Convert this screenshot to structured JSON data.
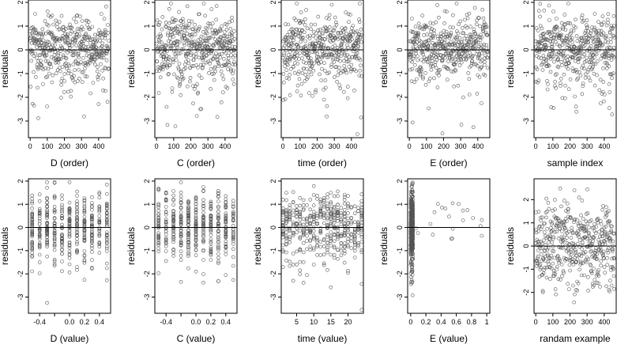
{
  "chart_data": [
    {
      "type": "scatter",
      "xlabel": "D (order)",
      "ylabel": "residuals",
      "xlim": [
        -10,
        470
      ],
      "ylim": [
        -3.7,
        2.1
      ],
      "xticks": [
        0,
        100,
        200,
        300,
        400
      ],
      "yticks": [
        -3,
        -2,
        -1,
        0,
        1,
        2
      ],
      "zero_line": 0,
      "n": 460,
      "pattern": "order"
    },
    {
      "type": "scatter",
      "xlabel": "C (order)",
      "ylabel": "residuals",
      "xlim": [
        -10,
        470
      ],
      "ylim": [
        -3.7,
        2.1
      ],
      "xticks": [
        0,
        100,
        200,
        300,
        400
      ],
      "yticks": [
        -3,
        -2,
        -1,
        0,
        1,
        2
      ],
      "zero_line": 0,
      "n": 460,
      "pattern": "order"
    },
    {
      "type": "scatter",
      "xlabel": "time (order)",
      "ylabel": "residuals",
      "xlim": [
        -10,
        470
      ],
      "ylim": [
        -3.7,
        2.1
      ],
      "xticks": [
        0,
        100,
        200,
        300,
        400
      ],
      "yticks": [
        -3,
        -2,
        -1,
        0,
        1,
        2
      ],
      "zero_line": 0,
      "n": 460,
      "pattern": "order"
    },
    {
      "type": "scatter",
      "xlabel": "E (order)",
      "ylabel": "residuals",
      "xlim": [
        -10,
        470
      ],
      "ylim": [
        -3.7,
        2.1
      ],
      "xticks": [
        0,
        100,
        200,
        300,
        400
      ],
      "yticks": [
        -3,
        -2,
        -1,
        0,
        1,
        2
      ],
      "zero_line": 0,
      "n": 460,
      "pattern": "order"
    },
    {
      "type": "scatter",
      "xlabel": "sample index",
      "ylabel": "residuals",
      "xlim": [
        -10,
        470
      ],
      "ylim": [
        -3.7,
        2.1
      ],
      "xticks": [
        0,
        100,
        200,
        300,
        400
      ],
      "yticks": [
        -3,
        -2,
        -1,
        0,
        1,
        2
      ],
      "zero_line": 0,
      "n": 460,
      "pattern": "order"
    },
    {
      "type": "scatter",
      "xlabel": "D (value)",
      "ylabel": "residuals",
      "xlim": [
        -0.55,
        0.55
      ],
      "ylim": [
        -3.7,
        2.1
      ],
      "xticks": [
        -0.4,
        -0.2,
        0.0,
        0.2,
        0.4
      ],
      "xticklabels": [
        "-0.4",
        "",
        "0.0",
        "0.2",
        "0.4"
      ],
      "yticks": [
        -3,
        -2,
        -1,
        0,
        1,
        2
      ],
      "zero_line": 0,
      "n": 460,
      "pattern": "discrete",
      "levels": [
        -0.5,
        -0.4,
        -0.3,
        -0.2,
        -0.1,
        0.0,
        0.1,
        0.2,
        0.3,
        0.4,
        0.5
      ]
    },
    {
      "type": "scatter",
      "xlabel": "C (value)",
      "ylabel": "residuals",
      "xlim": [
        -0.55,
        0.55
      ],
      "ylim": [
        -3.7,
        2.1
      ],
      "xticks": [
        -0.4,
        -0.2,
        0.0,
        0.2,
        0.4
      ],
      "xticklabels": [
        "-0.4",
        "",
        "0.0",
        "0.2",
        "0.4"
      ],
      "yticks": [
        -3,
        -2,
        -1,
        0,
        1,
        2
      ],
      "zero_line": 0,
      "n": 460,
      "pattern": "discrete",
      "levels": [
        -0.5,
        -0.4,
        -0.3,
        -0.2,
        -0.1,
        0.0,
        0.1,
        0.2,
        0.3,
        0.4,
        0.5
      ]
    },
    {
      "type": "scatter",
      "xlabel": "time (value)",
      "ylabel": "residuals",
      "xlim": [
        0.5,
        24.5
      ],
      "ylim": [
        -3.7,
        2.1
      ],
      "xticks": [
        5,
        10,
        15,
        20
      ],
      "yticks": [
        -3,
        -2,
        -1,
        0,
        1,
        2
      ],
      "zero_line": 0,
      "n": 460,
      "pattern": "discrete",
      "levels": [
        1,
        2,
        3,
        4,
        5,
        6,
        7,
        8,
        9,
        10,
        11,
        12,
        13,
        14,
        15,
        16,
        17,
        18,
        19,
        20,
        21,
        22,
        23,
        24
      ]
    },
    {
      "type": "scatter",
      "xlabel": "E (value)",
      "ylabel": "residuals",
      "xlim": [
        -0.04,
        1.04
      ],
      "ylim": [
        -3.7,
        2.1
      ],
      "xticks": [
        0.0,
        0.2,
        0.4,
        0.6,
        0.8,
        1.0
      ],
      "yticks": [
        -3,
        -2,
        -1,
        0,
        1,
        2
      ],
      "zero_line": 0,
      "n": 460,
      "pattern": "skewed"
    },
    {
      "type": "scatter",
      "xlabel": "randam example",
      "ylabel": "residuals",
      "xlim": [
        -10,
        470
      ],
      "ylim": [
        -2.9,
        2.9
      ],
      "xticks": [
        0,
        100,
        200,
        300,
        400
      ],
      "yticks": [
        -2,
        -1,
        0,
        1,
        2
      ],
      "zero_line": 0,
      "n": 460,
      "pattern": "random"
    }
  ]
}
